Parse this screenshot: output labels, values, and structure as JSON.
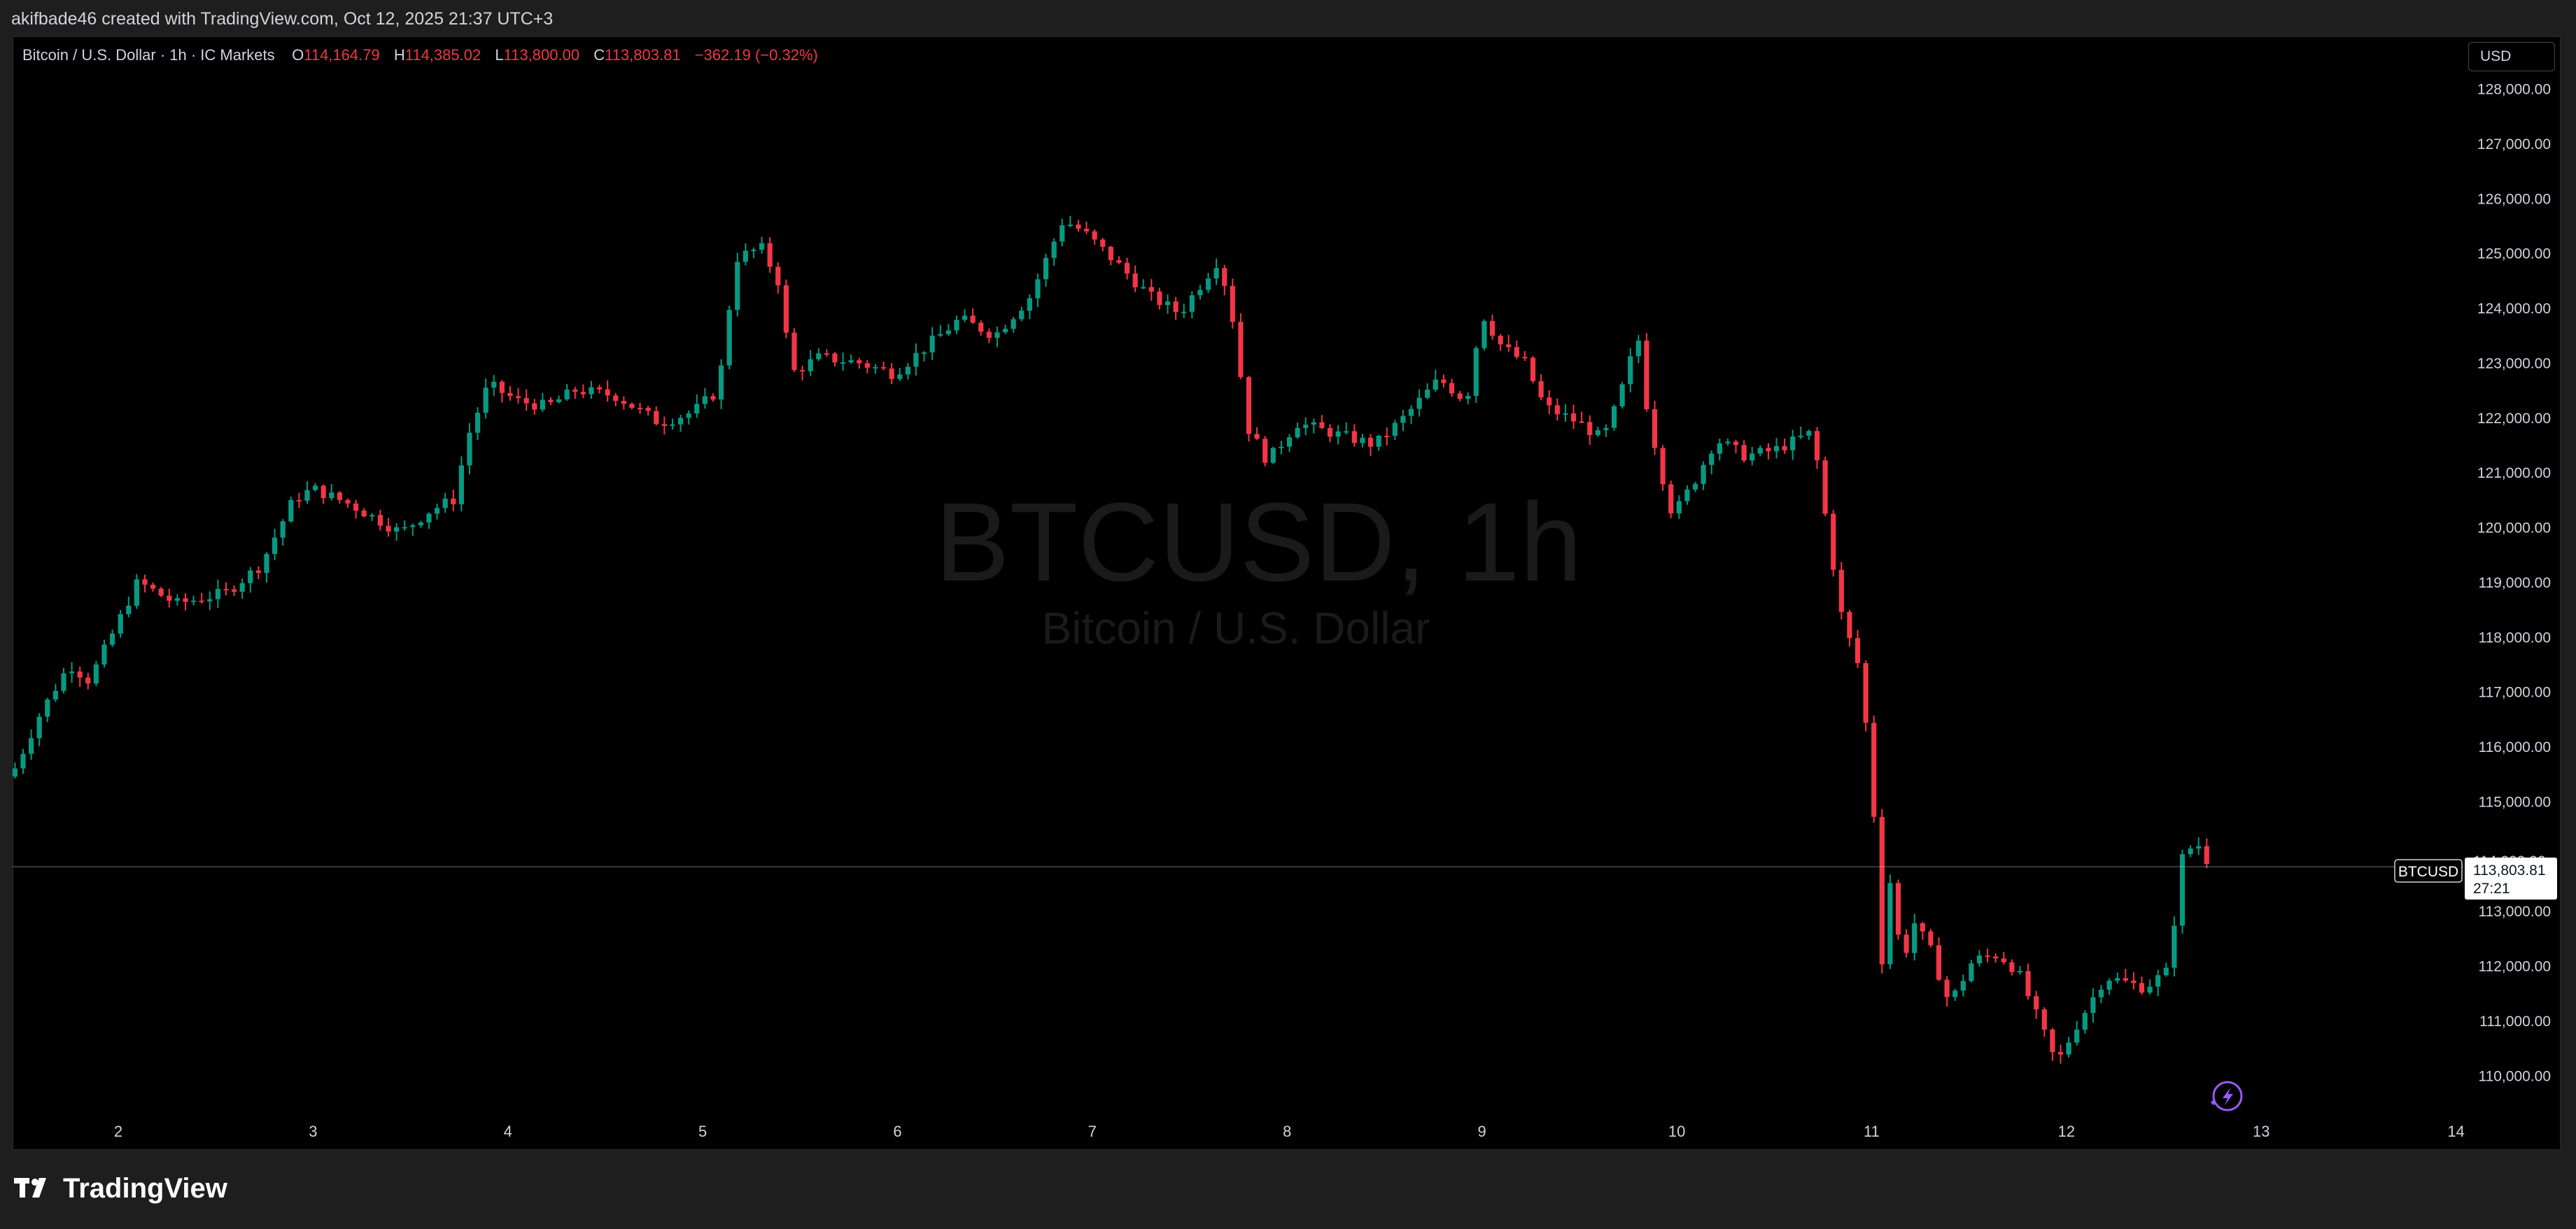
{
  "header": {
    "attribution": "akifbade46 created with TradingView.com, Oct 12, 2025 21:37 UTC+3"
  },
  "legend": {
    "symbol": "Bitcoin / U.S. Dollar · 1h · IC Markets",
    "open_label": "O",
    "open": "114,164.79",
    "high_label": "H",
    "high": "114,385.02",
    "low_label": "L",
    "low": "113,800.00",
    "close_label": "C",
    "close": "113,803.81",
    "change": "−362.19 (−0.32%)"
  },
  "currency_button": "USD",
  "watermark": {
    "symbol": "BTCUSD, 1h",
    "description": "Bitcoin / U.S. Dollar"
  },
  "price_tag": {
    "symbol": "BTCUSD",
    "price": "113,803.81",
    "countdown": "27:21",
    "behind_label": "114,000.00"
  },
  "footer": {
    "brand": "TradingView"
  },
  "colors": {
    "up": "#089981",
    "down": "#f23645",
    "background": "#000000",
    "frame": "#1e1e1e",
    "axis_text": "#d1d4dc",
    "lightning_icon": "#9b59ff"
  },
  "chart_data": {
    "type": "candlestick",
    "interval": "1h",
    "y_tick_labels": [
      "110,000.00",
      "111,000.00",
      "112,000.00",
      "113,000.00",
      "115,000.00",
      "116,000.00",
      "117,000.00",
      "118,000.00",
      "119,000.00",
      "120,000.00",
      "121,000.00",
      "122,000.00",
      "123,000.00",
      "124,000.00",
      "125,000.00",
      "126,000.00",
      "127,000.00",
      "128,000.00"
    ],
    "y_ticks": [
      110000,
      111000,
      112000,
      113000,
      115000,
      116000,
      117000,
      118000,
      119000,
      120000,
      121000,
      122000,
      123000,
      124000,
      125000,
      126000,
      127000,
      128000
    ],
    "ylim": [
      109200,
      128900
    ],
    "x_tick_labels": [
      "2",
      "3",
      "4",
      "5",
      "6",
      "7",
      "8",
      "9",
      "10",
      "11",
      "12",
      "13",
      "14"
    ],
    "x_ticks": [
      2,
      3,
      4,
      5,
      6,
      7,
      8,
      9,
      10,
      11,
      12,
      13,
      14
    ],
    "xlim": [
      1.465,
      14.03
    ],
    "last_price": 113803.81,
    "close_points": [
      [
        1.47,
        115600
      ],
      [
        1.6,
        116600
      ],
      [
        1.75,
        117500
      ],
      [
        1.85,
        117200
      ],
      [
        1.95,
        117900
      ],
      [
        2.1,
        119000
      ],
      [
        2.3,
        118600
      ],
      [
        2.55,
        118800
      ],
      [
        2.73,
        119300
      ],
      [
        2.9,
        120500
      ],
      [
        3.0,
        120700
      ],
      [
        3.2,
        120400
      ],
      [
        3.45,
        119900
      ],
      [
        3.6,
        120300
      ],
      [
        3.72,
        120500
      ],
      [
        3.8,
        121700
      ],
      [
        3.9,
        122600
      ],
      [
        4.05,
        122300
      ],
      [
        4.2,
        122200
      ],
      [
        4.35,
        122500
      ],
      [
        4.55,
        122400
      ],
      [
        4.78,
        121900
      ],
      [
        4.95,
        122100
      ],
      [
        5.08,
        122500
      ],
      [
        5.17,
        124900
      ],
      [
        5.3,
        125100
      ],
      [
        5.4,
        124400
      ],
      [
        5.45,
        122800
      ],
      [
        5.6,
        123100
      ],
      [
        5.8,
        123000
      ],
      [
        5.98,
        122800
      ],
      [
        6.15,
        123300
      ],
      [
        6.32,
        123800
      ],
      [
        6.5,
        123500
      ],
      [
        6.68,
        124200
      ],
      [
        6.85,
        125600
      ],
      [
        6.95,
        125400
      ],
      [
        7.1,
        124900
      ],
      [
        7.3,
        124200
      ],
      [
        7.45,
        123900
      ],
      [
        7.65,
        124900
      ],
      [
        7.72,
        123800
      ],
      [
        7.8,
        121800
      ],
      [
        7.9,
        121200
      ],
      [
        8.05,
        121900
      ],
      [
        8.25,
        121700
      ],
      [
        8.45,
        121500
      ],
      [
        8.6,
        122000
      ],
      [
        8.78,
        122700
      ],
      [
        8.92,
        122300
      ],
      [
        9.0,
        123900
      ],
      [
        9.1,
        123300
      ],
      [
        9.22,
        123000
      ],
      [
        9.32,
        122200
      ],
      [
        9.5,
        121900
      ],
      [
        9.62,
        121600
      ],
      [
        9.7,
        122300
      ],
      [
        9.8,
        123500
      ],
      [
        9.85,
        122100
      ],
      [
        9.92,
        121000
      ],
      [
        9.98,
        120200
      ],
      [
        10.1,
        120900
      ],
      [
        10.2,
        121600
      ],
      [
        10.35,
        121300
      ],
      [
        10.5,
        121400
      ],
      [
        10.68,
        121700
      ],
      [
        10.72,
        121200
      ],
      [
        10.78,
        119800
      ],
      [
        10.85,
        118300
      ],
      [
        10.93,
        117500
      ],
      [
        11.0,
        115600
      ],
      [
        11.05,
        112000
      ],
      [
        11.1,
        113700
      ],
      [
        11.16,
        111800
      ],
      [
        11.2,
        112900
      ],
      [
        11.3,
        112300
      ],
      [
        11.4,
        111300
      ],
      [
        11.52,
        112100
      ],
      [
        11.65,
        112200
      ],
      [
        11.75,
        111900
      ],
      [
        11.88,
        110800
      ],
      [
        11.95,
        110200
      ],
      [
        12.05,
        110900
      ],
      [
        12.2,
        111800
      ],
      [
        12.4,
        111600
      ],
      [
        12.52,
        111900
      ],
      [
        12.6,
        114100
      ],
      [
        12.68,
        114200
      ],
      [
        12.74,
        113804
      ]
    ]
  }
}
